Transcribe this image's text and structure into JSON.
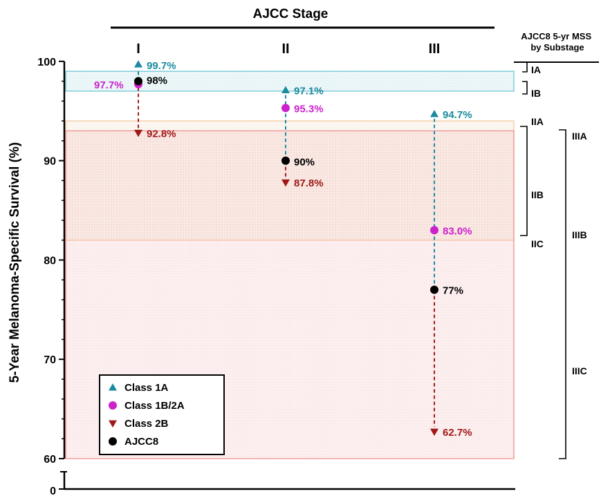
{
  "chart_data": {
    "type": "scatter",
    "title": "AJCC Stage",
    "ylabel": "5-Year Melanoma-Specific Survival (%)",
    "ylim": [
      60,
      100
    ],
    "y_break_label": "0",
    "yticks": [
      60,
      70,
      80,
      90,
      100
    ],
    "y_minor_step": 2,
    "categories": [
      "I",
      "II",
      "III"
    ],
    "series": [
      {
        "name": "Class 1A",
        "marker": "triangle-up",
        "color": "#1a8a9e",
        "values": [
          99.7,
          97.1,
          94.7
        ],
        "labels": [
          "99.7%",
          "97.1%",
          "94.7%"
        ]
      },
      {
        "name": "Class 1B/2A",
        "marker": "circle",
        "color": "#cc22cc",
        "values": [
          97.7,
          95.3,
          83.0
        ],
        "labels": [
          "97.7%",
          "95.3%",
          "83.0%"
        ]
      },
      {
        "name": "Class 2B",
        "marker": "triangle-down",
        "color": "#a01818",
        "values": [
          92.8,
          87.8,
          62.7
        ],
        "labels": [
          "92.8%",
          "87.8%",
          "62.7%"
        ]
      },
      {
        "name": "AJCC8",
        "marker": "circle",
        "color": "#000000",
        "values": [
          98,
          90,
          77
        ],
        "labels": [
          "98%",
          "90%",
          "77%"
        ]
      }
    ],
    "legend_position": "bottom-left",
    "grid": false,
    "bands": [
      {
        "stage": "I",
        "ymin": 97,
        "ymax": 99,
        "color": "#6fc5d3"
      },
      {
        "stage": "II",
        "ymin": 82,
        "ymax": 94,
        "color": "#f4c9a0"
      },
      {
        "stage": "III",
        "ymin": 60,
        "ymax": 93,
        "color": "#f08f8f"
      }
    ],
    "substage_header": "AJCC8 5-yr MSS by Substage",
    "substages_col1": [
      {
        "label": "IA",
        "value": 99
      },
      {
        "label": "IB",
        "value": 97
      },
      {
        "label": "IIA",
        "value": 94
      },
      {
        "label": "IIB",
        "value": 87
      },
      {
        "label": "IIC",
        "value": 82
      }
    ],
    "substages_col2": [
      {
        "label": "IIIA",
        "value": 93
      },
      {
        "label": "IIIB",
        "value": 83
      },
      {
        "label": "IIIC",
        "value": 69
      }
    ]
  }
}
